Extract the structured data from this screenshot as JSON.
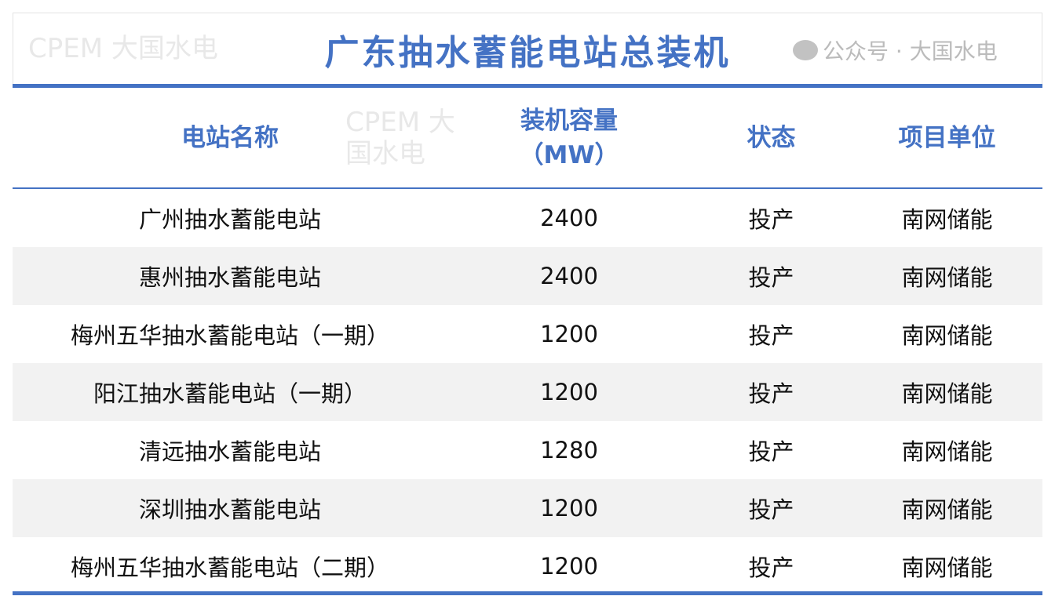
{
  "title": "广东抽水蓄能电站总装机",
  "headers": {
    "name": "电站名称",
    "capacity_line1": "装机容量",
    "capacity_line2": "（MW）",
    "status": "状态",
    "unit": "项目单位"
  },
  "rows": [
    {
      "name": "广州抽水蓄能电站",
      "capacity": "2400",
      "status": "投产",
      "unit": "南网储能"
    },
    {
      "name": "惠州抽水蓄能电站",
      "capacity": "2400",
      "status": "投产",
      "unit": "南网储能"
    },
    {
      "name": "梅州五华抽水蓄能电站（一期）",
      "capacity": "1200",
      "status": "投产",
      "unit": "南网储能"
    },
    {
      "name": "阳江抽水蓄能电站（一期）",
      "capacity": "1200",
      "status": "投产",
      "unit": "南网储能"
    },
    {
      "name": "清远抽水蓄能电站",
      "capacity": "1280",
      "status": "投产",
      "unit": "南网储能"
    },
    {
      "name": "深圳抽水蓄能电站",
      "capacity": "1200",
      "status": "投产",
      "unit": "南网储能"
    },
    {
      "name": "梅州五华抽水蓄能电站（二期）",
      "capacity": "1200",
      "status": "投产",
      "unit": "南网储能"
    }
  ],
  "watermark": "CPEM 大国水电",
  "brand_watermark": "公众号 · 大国水电",
  "colors": {
    "accent": "#4472c4",
    "alt_row": "#f2f2f2"
  }
}
